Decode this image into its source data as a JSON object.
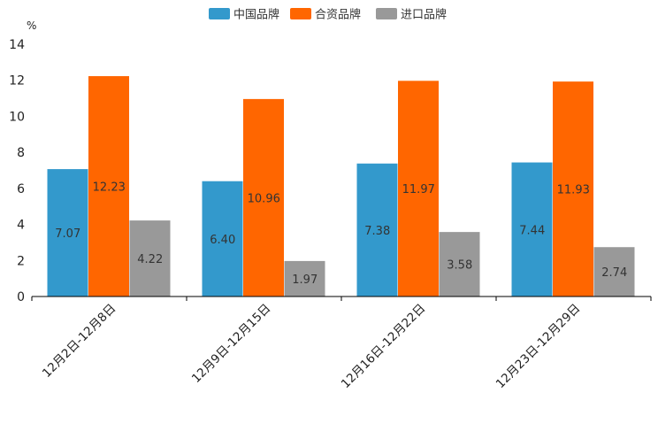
{
  "chart_data": {
    "type": "bar",
    "title": "",
    "ylabel": "%",
    "xlabel": "",
    "ylim": [
      0,
      14
    ],
    "yticks": [
      0,
      2,
      4,
      6,
      8,
      10,
      12,
      14
    ],
    "categories": [
      "12月2日-12月8日",
      "12月9日-12月15日",
      "12月16日-12月22日",
      "12月23日-12月29日"
    ],
    "series": [
      {
        "name": "中国品牌",
        "color": "#3399CC",
        "values": [
          7.07,
          6.4,
          7.38,
          7.44
        ],
        "labels": [
          "7.07",
          "6.40",
          "7.38",
          "7.44"
        ]
      },
      {
        "name": "合资品牌",
        "color": "#FF6600",
        "values": [
          12.23,
          10.96,
          11.97,
          11.93
        ],
        "labels": [
          "12.23",
          "10.96",
          "11.97",
          "11.93"
        ]
      },
      {
        "name": "进口品牌",
        "color": "#999999",
        "values": [
          4.22,
          1.97,
          3.58,
          2.74
        ],
        "labels": [
          "4.22",
          "1.97",
          "3.58",
          "2.74"
        ]
      }
    ],
    "legend": "top-center"
  }
}
